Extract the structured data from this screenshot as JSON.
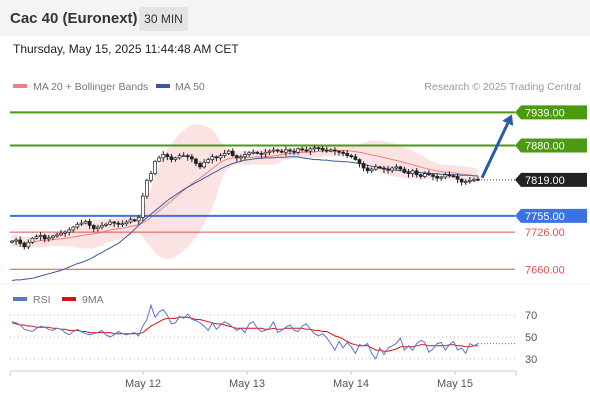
{
  "header": {
    "title": "Cac 40 (Euronext)",
    "timeframe": "30 MIN"
  },
  "subtitle": "Thursday, May 15, 2025 11:44:48 AM CET",
  "chart_data": [
    {
      "type": "candlestick",
      "legend": [
        {
          "label": "MA 20 + Bollinger Bands",
          "color": "#f08080"
        },
        {
          "label": "MA 50",
          "color": "#3a5a9c"
        }
      ],
      "legend_position": "top-left",
      "credit": "Research © 2025 Trading Central",
      "ylim": [
        7632,
        7952
      ],
      "x_ticks": [
        "May 12",
        "May 13",
        "May 14",
        "May 15"
      ],
      "current_price": {
        "label": "7819.00",
        "value": 7819,
        "color": "#222222"
      },
      "levels": [
        {
          "label": "7939.00",
          "value": 7939,
          "kind": "resistance",
          "color": "#4a9a12"
        },
        {
          "label": "7880.00",
          "value": 7880,
          "kind": "resistance",
          "color": "#4a9a12"
        },
        {
          "label": "7755.00",
          "value": 7755,
          "kind": "pivot",
          "color": "#3b73e0"
        },
        {
          "label": "7726.00",
          "value": 7726,
          "kind": "support",
          "color": "#e05050"
        },
        {
          "label": "7660.00",
          "value": 7660,
          "kind": "support",
          "color": "#e05050"
        }
      ],
      "forecast_arrow": {
        "from": 7819,
        "to": 7939,
        "color": "#2a5ba8"
      },
      "close_series": [
        7710,
        7712,
        7706,
        7700,
        7708,
        7715,
        7718,
        7720,
        7714,
        7716,
        7719,
        7721,
        7724,
        7726,
        7730,
        7735,
        7740,
        7742,
        7745,
        7738,
        7732,
        7735,
        7738,
        7740,
        7744,
        7742,
        7740,
        7741,
        7744,
        7748,
        7746,
        7752,
        7790,
        7818,
        7830,
        7852,
        7858,
        7864,
        7860,
        7855,
        7858,
        7862,
        7862,
        7860,
        7856,
        7848,
        7842,
        7850,
        7855,
        7860,
        7858,
        7862,
        7866,
        7870,
        7862,
        7858,
        7860,
        7864,
        7867,
        7868,
        7866,
        7865,
        7868,
        7870,
        7872,
        7870,
        7868,
        7872,
        7870,
        7868,
        7874,
        7872,
        7870,
        7874,
        7876,
        7875,
        7872,
        7870,
        7872,
        7870,
        7868,
        7866,
        7862,
        7860,
        7855,
        7848,
        7840,
        7835,
        7838,
        7842,
        7840,
        7838,
        7836,
        7840,
        7842,
        7838,
        7832,
        7830,
        7835,
        7828,
        7825,
        7830,
        7828,
        7825,
        7822,
        7824,
        7828,
        7826,
        7825,
        7820,
        7815,
        7816,
        7818,
        7820,
        7819
      ],
      "ma50_series": [
        7640,
        7641,
        7641,
        7642,
        7643,
        7644,
        7646,
        7648,
        7650,
        7652,
        7654,
        7656,
        7658,
        7661,
        7664,
        7667,
        7670,
        7672,
        7675,
        7678,
        7682,
        7686,
        7690,
        7694,
        7698,
        7702,
        7706,
        7712,
        7718,
        7724,
        7731,
        7738,
        7745,
        7752,
        7758,
        7764,
        7770,
        7776,
        7782,
        7787,
        7792,
        7797,
        7802,
        7806,
        7810,
        7814,
        7818,
        7822,
        7826,
        7830,
        7834,
        7838,
        7842,
        7845,
        7848,
        7850,
        7852,
        7854,
        7855,
        7856,
        7857,
        7857,
        7858,
        7858,
        7858,
        7859,
        7859,
        7859,
        7860,
        7860,
        7860,
        7858,
        7857,
        7856,
        7855,
        7855,
        7854,
        7854,
        7853,
        7852,
        7852,
        7851,
        7851,
        7850,
        7849,
        7848,
        7846,
        7845,
        7843,
        7842,
        7840,
        7839,
        7838,
        7837,
        7836,
        7835,
        7834,
        7834,
        7833,
        7832,
        7832,
        7831,
        7831,
        7830,
        7830,
        7829,
        7829,
        7828,
        7828,
        7828,
        7827,
        7827,
        7827,
        7826,
        7826
      ]
    },
    {
      "type": "line",
      "legend": [
        {
          "label": "RSI",
          "color": "#5577cc"
        },
        {
          "label": "9MA",
          "color": "#dd1111"
        }
      ],
      "legend_position": "top-left",
      "ylim": [
        18,
        82
      ],
      "y_ticks": [
        "70",
        "50",
        "30"
      ],
      "levels": [
        70,
        50,
        30
      ],
      "rsi_series": [
        64,
        63,
        61,
        57,
        56,
        55,
        58,
        60,
        59,
        57,
        56,
        58,
        57,
        54,
        52,
        55,
        57,
        55,
        53,
        52,
        53,
        54,
        56,
        52,
        50,
        52,
        55,
        53,
        52,
        53,
        54,
        51,
        60,
        66,
        79,
        68,
        73,
        75,
        70,
        62,
        63,
        69,
        67,
        71,
        66,
        65,
        63,
        60,
        56,
        63,
        57,
        61,
        64,
        62,
        59,
        56,
        58,
        54,
        62,
        64,
        58,
        55,
        56,
        58,
        64,
        54,
        56,
        59,
        61,
        56,
        55,
        60,
        62,
        57,
        53,
        51,
        53,
        49,
        44,
        38,
        46,
        40,
        45,
        41,
        35,
        43,
        42,
        44,
        35,
        30,
        40,
        34,
        40,
        42,
        44,
        49,
        38,
        42,
        38,
        44,
        47,
        45,
        36,
        39,
        44,
        45,
        38,
        43,
        46,
        38,
        40,
        35,
        44,
        42,
        44
      ],
      "ma9_series": [
        63,
        62,
        61,
        61,
        60,
        60,
        59,
        59,
        59,
        59,
        58,
        58,
        57,
        57,
        56,
        56,
        56,
        55,
        55,
        54,
        54,
        54,
        54,
        54,
        54,
        53,
        53,
        53,
        53,
        53,
        53,
        53,
        54,
        57,
        60,
        62,
        64,
        66,
        67,
        67,
        67,
        68,
        68,
        68,
        67,
        66,
        66,
        65,
        64,
        63,
        62,
        62,
        61,
        60,
        59,
        58,
        58,
        58,
        58,
        58,
        58,
        58,
        57,
        57,
        58,
        57,
        57,
        58,
        58,
        58,
        58,
        58,
        57,
        57,
        56,
        56,
        55,
        55,
        53,
        51,
        50,
        48,
        46,
        44,
        43,
        42,
        42,
        42,
        40,
        38,
        38,
        37,
        37,
        38,
        39,
        41,
        41,
        41,
        41,
        42,
        43,
        43,
        42,
        42,
        42,
        42,
        42,
        43,
        43,
        42,
        42,
        41,
        41,
        42,
        42
      ]
    }
  ]
}
